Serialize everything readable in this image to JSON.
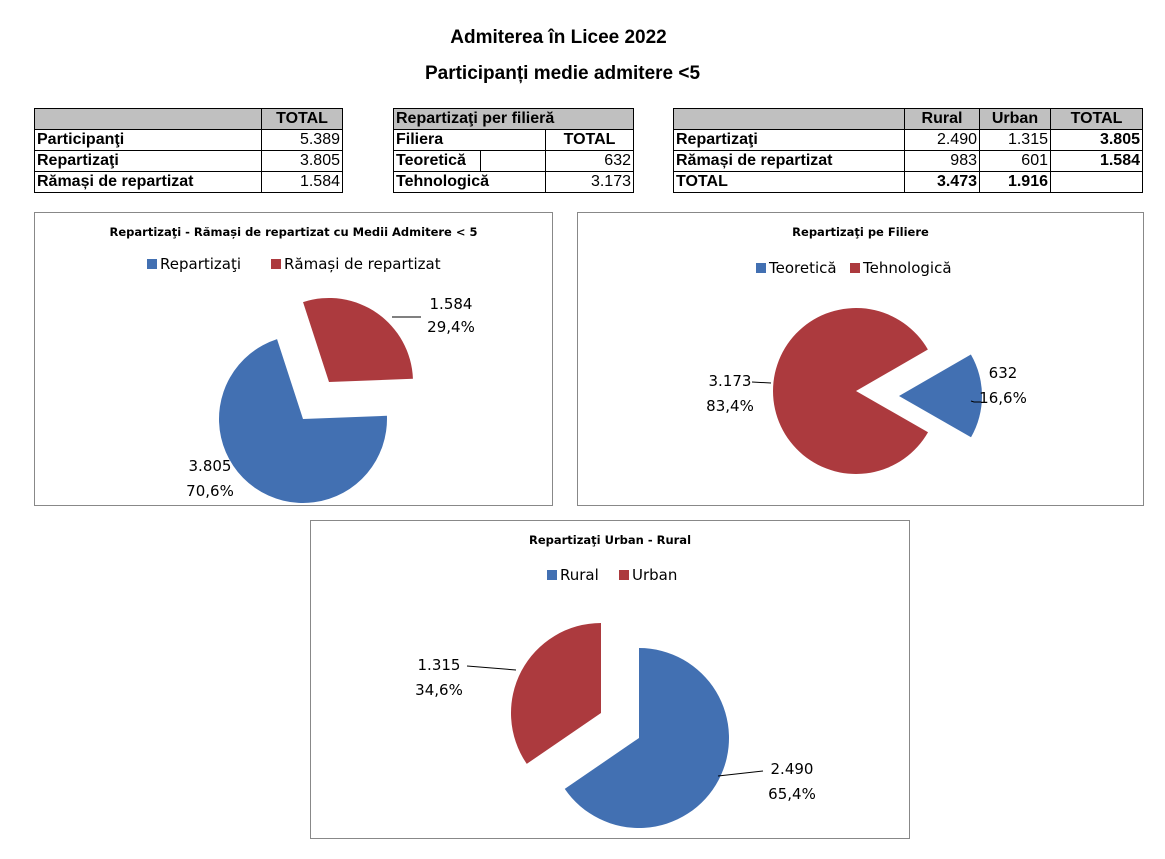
{
  "header": {
    "title": "Admiterea în Licee 2022",
    "subtitle": "Participanți medie admitere <5"
  },
  "table_totals": {
    "header": [
      "",
      "TOTAL"
    ],
    "rows": [
      {
        "label": "Participanţi",
        "total": "5.389"
      },
      {
        "label": "Repartizaţi",
        "total": "3.805"
      },
      {
        "label": "Rămași de repartizat",
        "total": "1.584"
      }
    ]
  },
  "table_filiera": {
    "title": "Repartizaţi per filieră",
    "header": [
      "Filiera",
      "TOTAL"
    ],
    "rows": [
      {
        "label": "Teoretică",
        "total": "632"
      },
      {
        "label": "Tehnologică",
        "total": "3.173"
      }
    ]
  },
  "table_mediu": {
    "header": [
      "",
      "Rural",
      "Urban",
      "TOTAL"
    ],
    "rows": [
      {
        "label": "Repartizaţi",
        "rural": "2.490",
        "urban": "1.315",
        "total": "3.805"
      },
      {
        "label": "Rămași de repartizat",
        "rural": "983",
        "urban": "601",
        "total": "1.584"
      },
      {
        "label": "TOTAL",
        "rural": "3.473",
        "urban": "1.916",
        "total": ""
      }
    ]
  },
  "colors": {
    "blue": "#4270b2",
    "red": "#ac3a3e"
  },
  "chart_data": [
    {
      "type": "pie",
      "title": "Repartizaţi - Rămași de repartizat cu Medii Admitere < 5",
      "legend_position": "top",
      "slices": [
        {
          "name": "Repartizaţi",
          "value": 3805,
          "value_label": "3.805",
          "percent_label": "70,6%",
          "color": "#4270b2"
        },
        {
          "name": "Rămași de repartizat",
          "value": 1584,
          "value_label": "1.584",
          "percent_label": "29,4%",
          "color": "#ac3a3e"
        }
      ]
    },
    {
      "type": "pie",
      "title": "Repartizaţi pe Filiere",
      "legend_position": "top",
      "slices": [
        {
          "name": "Teoretică",
          "value": 632,
          "value_label": "632",
          "percent_label": "16,6%",
          "color": "#4270b2"
        },
        {
          "name": "Tehnologică",
          "value": 3173,
          "value_label": "3.173",
          "percent_label": "83,4%",
          "color": "#ac3a3e"
        }
      ]
    },
    {
      "type": "pie",
      "title": "Repartizaţi Urban - Rural",
      "legend_position": "top",
      "slices": [
        {
          "name": "Rural",
          "value": 2490,
          "value_label": "2.490",
          "percent_label": "65,4%",
          "color": "#4270b2"
        },
        {
          "name": "Urban",
          "value": 1315,
          "value_label": "1.315",
          "percent_label": "34,6%",
          "color": "#ac3a3e"
        }
      ]
    }
  ]
}
